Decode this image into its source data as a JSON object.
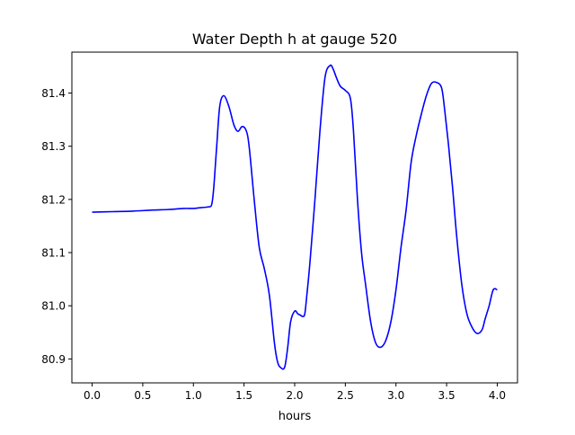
{
  "chart_data": {
    "type": "line",
    "title": "Water Depth h at gauge 520",
    "xlabel": "hours",
    "ylabel": "",
    "xlim": [
      -0.2,
      4.2
    ],
    "ylim": [
      80.855,
      81.477
    ],
    "grid": false,
    "xticks": [
      0.0,
      0.5,
      1.0,
      1.5,
      2.0,
      2.5,
      3.0,
      3.5,
      4.0
    ],
    "xtick_labels": [
      "0.0",
      "0.5",
      "1.0",
      "1.5",
      "2.0",
      "2.5",
      "3.0",
      "3.5",
      "4.0"
    ],
    "yticks": [
      80.9,
      81.0,
      81.1,
      81.2,
      81.3,
      81.4
    ],
    "ytick_labels": [
      "80.9",
      "81.0",
      "81.1",
      "81.2",
      "81.3",
      "81.4"
    ],
    "series": [
      {
        "color": "#0000ff",
        "x": [
          0.0,
          0.2,
          0.4,
          0.6,
          0.75,
          0.9,
          1.0,
          1.05,
          1.1,
          1.15,
          1.18,
          1.2,
          1.23,
          1.26,
          1.3,
          1.35,
          1.4,
          1.44,
          1.48,
          1.52,
          1.55,
          1.6,
          1.65,
          1.7,
          1.75,
          1.8,
          1.83,
          1.86,
          1.9,
          1.93,
          1.96,
          2.0,
          2.03,
          2.05,
          2.08,
          2.1,
          2.12,
          2.15,
          2.2,
          2.25,
          2.3,
          2.35,
          2.38,
          2.41,
          2.45,
          2.5,
          2.55,
          2.58,
          2.62,
          2.66,
          2.7,
          2.75,
          2.8,
          2.85,
          2.9,
          2.95,
          3.0,
          3.05,
          3.1,
          3.15,
          3.2,
          3.25,
          3.3,
          3.35,
          3.4,
          3.45,
          3.48,
          3.52,
          3.56,
          3.6,
          3.65,
          3.7,
          3.75,
          3.8,
          3.85,
          3.88,
          3.92,
          3.96,
          4.0
        ],
        "y": [
          81.176,
          81.177,
          81.178,
          81.18,
          81.181,
          81.183,
          81.183,
          81.184,
          81.185,
          81.186,
          81.19,
          81.22,
          81.3,
          81.375,
          81.395,
          81.375,
          81.34,
          81.328,
          81.337,
          81.33,
          81.3,
          81.2,
          81.11,
          81.07,
          81.02,
          80.93,
          80.895,
          80.884,
          80.884,
          80.92,
          80.97,
          80.99,
          80.985,
          80.983,
          80.98,
          80.985,
          81.02,
          81.08,
          81.2,
          81.33,
          81.43,
          81.452,
          81.445,
          81.43,
          81.413,
          81.405,
          81.39,
          81.33,
          81.2,
          81.1,
          81.04,
          80.97,
          80.93,
          80.922,
          80.935,
          80.97,
          81.03,
          81.11,
          81.18,
          81.27,
          81.32,
          81.36,
          81.395,
          81.418,
          81.42,
          81.41,
          81.37,
          81.3,
          81.22,
          81.13,
          81.04,
          80.985,
          80.96,
          80.948,
          80.955,
          80.975,
          81.0,
          81.03,
          81.03
        ]
      }
    ]
  }
}
